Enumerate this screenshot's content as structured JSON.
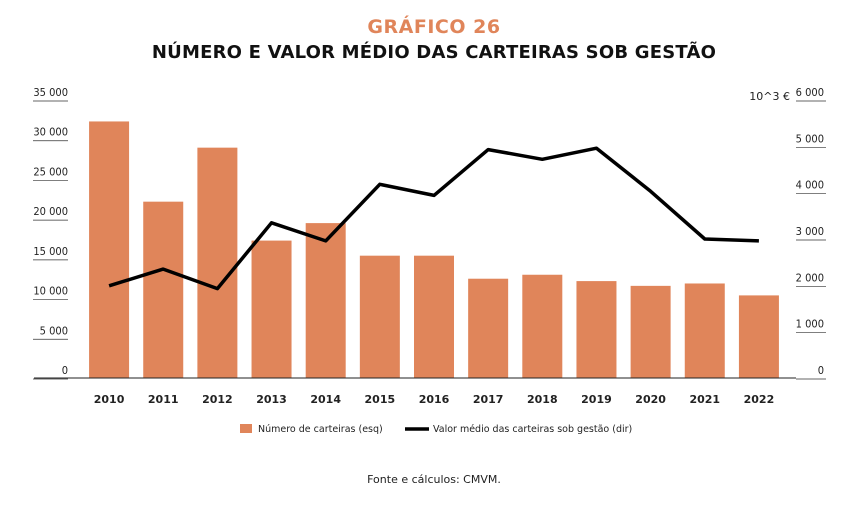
{
  "header": {
    "kicker": "GRÁFICO 26",
    "title": "NÚMERO E VALOR MÉDIO DAS CARTEIRAS SOB GESTÃO"
  },
  "footer": {
    "source": "Fonte e cálculos: CMVM."
  },
  "colors": {
    "bar": "#e0855a",
    "line": "#000000",
    "kicker": "#e0855a"
  },
  "chart_data": {
    "type": "bar",
    "categories": [
      "2010",
      "2011",
      "2012",
      "2013",
      "2014",
      "2015",
      "2016",
      "2017",
      "2018",
      "2019",
      "2020",
      "2021",
      "2022"
    ],
    "series": [
      {
        "name": "Número de carteiras (esq)",
        "type": "bar",
        "axis": "left",
        "values": [
          32300,
          22200,
          29000,
          17300,
          19500,
          15400,
          15400,
          12500,
          13000,
          12200,
          11600,
          11900,
          10400
        ]
      },
      {
        "name": "Valor médio das carteiras sob gestão (dir)",
        "type": "line",
        "axis": "right",
        "values": [
          1990,
          2350,
          1930,
          3350,
          2960,
          4180,
          3940,
          4930,
          4720,
          4960,
          4030,
          3000,
          2960
        ]
      }
    ],
    "y_left": {
      "ylim": [
        0,
        35000
      ],
      "ticks": [
        "35 000",
        "30 000",
        "25 000",
        "20 000",
        "15 000",
        "10 000",
        "5 000",
        "0"
      ]
    },
    "y_right": {
      "ylim": [
        0,
        6000
      ],
      "unit": "10^3 €",
      "ticks": [
        "6 000",
        "5 000",
        "4 000",
        "3 000",
        "2 000",
        "1 000",
        "0"
      ]
    },
    "legend_position": "bottom",
    "grid": false
  }
}
